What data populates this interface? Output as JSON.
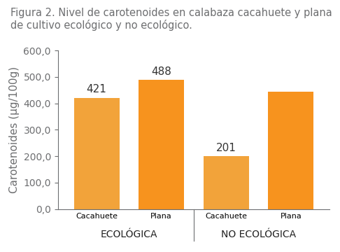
{
  "chart_data": {
    "type": "bar",
    "title": "Figura 2. Nivel de carotenoides en calabaza cacahuete y plana de cultivo ecológico y no ecológico.",
    "y_label": "Carotenoides (µg/100g)",
    "categories": [
      "Cacahuete",
      "Plana",
      "Cacahuete",
      "Plana"
    ],
    "groups": [
      "ECOLÓGICA",
      "NO ECOLÓGICA"
    ],
    "values": [
      421,
      488,
      201,
      445
    ],
    "value_labels": [
      "421",
      "488",
      "201",
      null
    ],
    "colors": [
      "#f2a33a",
      "#f7931e",
      "#f2a33a",
      "#f7931e"
    ],
    "data_labels": true,
    "ylim": [
      0,
      600
    ],
    "yticks": [
      {
        "value": 0,
        "label": "0,0"
      },
      {
        "value": 100,
        "label": "100,0"
      },
      {
        "value": 200,
        "label": "200,0"
      },
      {
        "value": 300,
        "label": "300,0"
      },
      {
        "value": 400,
        "label": "400,0"
      },
      {
        "value": 500,
        "label": "500,0"
      },
      {
        "value": 600,
        "label": "600,0"
      }
    ],
    "grid": false
  }
}
